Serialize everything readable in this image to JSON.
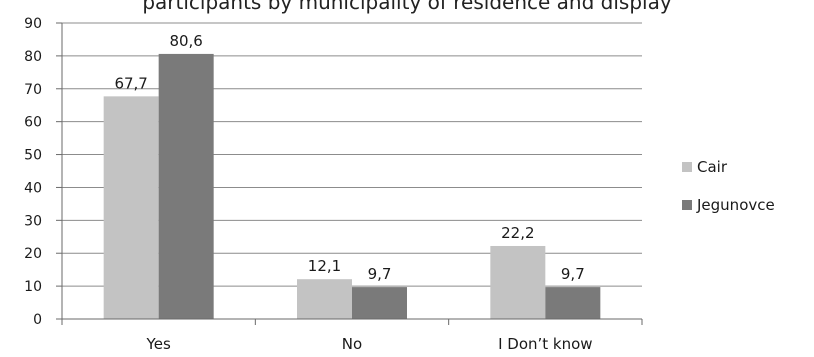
{
  "chart_data": {
    "type": "bar",
    "title": "",
    "categories": [
      "Yes",
      "No",
      "I Don’t know"
    ],
    "series": [
      {
        "name": "Cair",
        "values": [
          67.7,
          12.1,
          22.2
        ],
        "labels": [
          "67,7",
          "12,1",
          "22,2"
        ],
        "color": "#c3c3c3"
      },
      {
        "name": "Jegunovce",
        "values": [
          80.6,
          9.7,
          9.7
        ],
        "labels": [
          "80,6",
          "9,7",
          "9,7"
        ],
        "color": "#7a7a7a"
      }
    ],
    "ylim": [
      0,
      90
    ],
    "yticks": [
      0,
      10,
      20,
      30,
      40,
      50,
      60,
      70,
      80,
      90
    ],
    "xlabel": "",
    "ylabel": "",
    "grid": true,
    "legend": "right"
  },
  "cropped_title_text": "participants by municipality of residence and display"
}
